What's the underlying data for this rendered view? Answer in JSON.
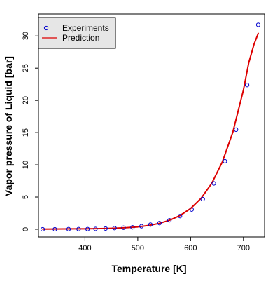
{
  "chart_data": {
    "type": "scatter",
    "xlabel": "Temperature [K]",
    "ylabel": "Vapor pressure of Liquid [bar]",
    "xlim": [
      312,
      740
    ],
    "ylim": [
      -1.2,
      33.4
    ],
    "x_ticks": [
      400,
      500,
      600,
      700
    ],
    "y_ticks": [
      0,
      5,
      10,
      15,
      20,
      25,
      30
    ],
    "grid": false,
    "legend": {
      "position": "top-left",
      "background": "#e6e6e6"
    },
    "series": [
      {
        "name": "Experiments",
        "kind": "points",
        "color": "#0000cc",
        "x": [
          320,
          343,
          369,
          388,
          405,
          420,
          439,
          456,
          473,
          490,
          507,
          524,
          541,
          560,
          580,
          602,
          623,
          644,
          665,
          686,
          707,
          728
        ],
        "y": [
          0.0,
          0.0,
          0.02,
          0.03,
          0.03,
          0.06,
          0.11,
          0.18,
          0.24,
          0.3,
          0.47,
          0.72,
          0.95,
          1.39,
          2.04,
          3.06,
          4.68,
          7.12,
          10.56,
          15.46,
          22.38,
          31.73
        ]
      },
      {
        "name": "Prediction",
        "kind": "line",
        "color": "#dd0000",
        "x": [
          320,
          340,
          360,
          380,
          400,
          420,
          440,
          460,
          480,
          500,
          520,
          540,
          560,
          580,
          600,
          620,
          640,
          660,
          680,
          700,
          710,
          720,
          728
        ],
        "y": [
          0.02,
          0.04,
          0.05,
          0.06,
          0.07,
          0.09,
          0.12,
          0.17,
          0.25,
          0.37,
          0.58,
          0.9,
          1.39,
          2.13,
          3.22,
          4.82,
          7.13,
          10.43,
          15.09,
          21.62,
          25.82,
          28.7,
          30.4
        ]
      }
    ]
  }
}
